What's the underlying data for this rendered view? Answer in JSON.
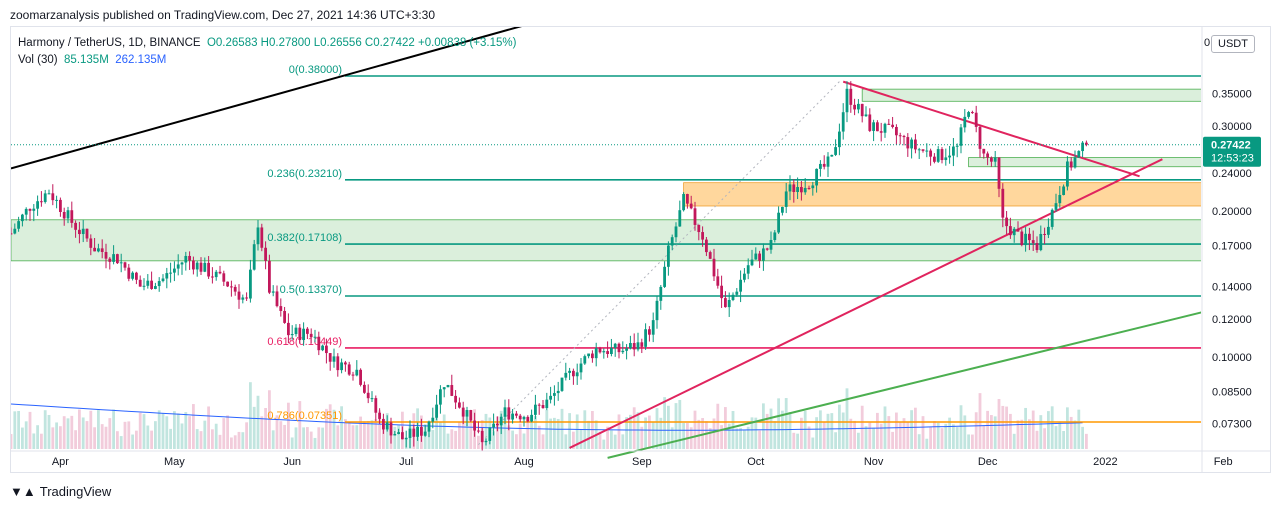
{
  "publisher_line": "zoomarzanalysis published on TradingView.com, Dec 27, 2021 14:36 UTC+3:30",
  "legend": {
    "symbol": "Harmony / TetherUS, 1D, BINANCE",
    "ohlc": "O0.26583 H0.27800 L0.26556 C0.27422 +0.00838 (+3.15%)",
    "vol_label": "Vol (30)",
    "vol_value": "85.135M",
    "vol_ma": "262.135M"
  },
  "currency": "USDT",
  "currency_zero": "0",
  "footer": "TradingView",
  "colors": {
    "up": "#089981",
    "down": "#c2185b",
    "fib": "#089981",
    "fib618": "#e91e63",
    "fib786": "#ff9800",
    "red_line": "#e0245e",
    "green_line": "#4caf50",
    "black_line": "#000000",
    "volume_ma": "#2962ff"
  },
  "chart_data": {
    "type": "candlestick",
    "symbol": "Harmony / TetherUS",
    "interval": "1D",
    "exchange": "BINANCE",
    "y_scale": "log",
    "ylim": [
      0.066,
      0.42
    ],
    "y_ticks": [
      "0.35000",
      "0.30000",
      "0.24000",
      "0.20000",
      "0.17000",
      "0.14000",
      "0.12000",
      "0.10000",
      "0.08500",
      "0.07300"
    ],
    "y_tick_values": [
      0.35,
      0.3,
      0.24,
      0.2,
      0.17,
      0.14,
      0.12,
      0.1,
      0.085,
      0.073
    ],
    "x_ticks": [
      "Apr",
      "May",
      "Jun",
      "Jul",
      "Aug",
      "Sep",
      "Oct",
      "Nov",
      "Dec",
      "2022",
      "Feb"
    ],
    "x_tick_dates": [
      "2021-04-01",
      "2021-05-01",
      "2021-06-01",
      "2021-07-01",
      "2021-08-01",
      "2021-09-01",
      "2021-10-01",
      "2021-11-01",
      "2021-12-01",
      "2022-01-01",
      "2022-02-01"
    ],
    "x_range": [
      "2021-03-19",
      "2022-02-10"
    ],
    "last_price": "0.27422",
    "countdown": "12:53:23",
    "last_price_value": 0.27422,
    "fib_levels": [
      {
        "label": "0(0.38000)",
        "value": 0.38,
        "color": "#089981"
      },
      {
        "label": "0.236(0.23210)",
        "value": 0.2321,
        "color": "#089981"
      },
      {
        "label": "0.382(0.17108)",
        "value": 0.17108,
        "color": "#089981"
      },
      {
        "label": "0.5(0.13370)",
        "value": 0.1337,
        "color": "#089981"
      },
      {
        "label": "0.618(0.10449)",
        "value": 0.10449,
        "color": "#e91e63"
      },
      {
        "label": "0.786(0.07351)",
        "value": 0.07351,
        "color": "#ff9800"
      }
    ],
    "zones": [
      {
        "from": "2021-03-19",
        "to": "2022-01-31",
        "low": 0.158,
        "high": 0.192,
        "color": "green"
      },
      {
        "from": "2021-09-12",
        "to": "2022-01-31",
        "low": 0.205,
        "high": 0.229,
        "color": "orange"
      },
      {
        "from": "2021-10-29",
        "to": "2022-01-31",
        "low": 0.337,
        "high": 0.357,
        "color": "green"
      },
      {
        "from": "2021-11-26",
        "to": "2022-01-31",
        "low": 0.247,
        "high": 0.258,
        "color": "green"
      }
    ],
    "trendlines": [
      {
        "name": "black",
        "from": [
          "2021-03-19",
          0.245
        ],
        "to": [
          "2021-10-02",
          0.66
        ]
      },
      {
        "name": "red-down",
        "from": [
          "2021-10-24",
          0.37
        ],
        "to": [
          "2022-01-10",
          0.236
        ]
      },
      {
        "name": "red-up",
        "from": [
          "2021-08-13",
          0.065
        ],
        "to": [
          "2022-01-16",
          0.256
        ]
      },
      {
        "name": "green",
        "from": [
          "2021-08-23",
          0.062
        ],
        "to": [
          "2022-02-10",
          0.132
        ]
      },
      {
        "name": "dotted",
        "from": [
          "2021-07-20",
          0.066
        ],
        "to": [
          "2021-10-23",
          0.37
        ]
      }
    ],
    "price_path": [
      [
        "2021-03-19",
        0.18
      ],
      [
        "2021-03-24",
        0.205
      ],
      [
        "2021-03-29",
        0.22
      ],
      [
        "2021-04-04",
        0.19
      ],
      [
        "2021-04-10",
        0.168
      ],
      [
        "2021-04-16",
        0.16
      ],
      [
        "2021-04-22",
        0.14
      ],
      [
        "2021-04-28",
        0.145
      ],
      [
        "2021-05-04",
        0.16
      ],
      [
        "2021-05-10",
        0.15
      ],
      [
        "2021-05-16",
        0.14
      ],
      [
        "2021-05-20",
        0.13
      ],
      [
        "2021-05-23",
        0.19
      ],
      [
        "2021-05-26",
        0.138
      ],
      [
        "2021-05-31",
        0.112
      ],
      [
        "2021-06-06",
        0.112
      ],
      [
        "2021-06-12",
        0.098
      ],
      [
        "2021-06-18",
        0.094
      ],
      [
        "2021-06-24",
        0.074
      ],
      [
        "2021-06-30",
        0.068
      ],
      [
        "2021-07-06",
        0.071
      ],
      [
        "2021-07-11",
        0.089
      ],
      [
        "2021-07-16",
        0.078
      ],
      [
        "2021-07-21",
        0.066
      ],
      [
        "2021-07-27",
        0.077
      ],
      [
        "2021-08-02",
        0.076
      ],
      [
        "2021-08-08",
        0.082
      ],
      [
        "2021-08-14",
        0.094
      ],
      [
        "2021-08-20",
        0.104
      ],
      [
        "2021-08-26",
        0.103
      ],
      [
        "2021-08-31",
        0.106
      ],
      [
        "2021-09-04",
        0.117
      ],
      [
        "2021-09-08",
        0.165
      ],
      [
        "2021-09-12",
        0.21
      ],
      [
        "2021-09-17",
        0.178
      ],
      [
        "2021-09-23",
        0.125
      ],
      [
        "2021-09-29",
        0.155
      ],
      [
        "2021-10-05",
        0.17
      ],
      [
        "2021-10-09",
        0.22
      ],
      [
        "2021-10-15",
        0.23
      ],
      [
        "2021-10-21",
        0.255
      ],
      [
        "2021-10-25",
        0.35
      ],
      [
        "2021-10-31",
        0.3
      ],
      [
        "2021-11-06",
        0.29
      ],
      [
        "2021-11-12",
        0.27
      ],
      [
        "2021-11-18",
        0.26
      ],
      [
        "2021-11-23",
        0.27
      ],
      [
        "2021-11-26",
        0.33
      ],
      [
        "2021-11-30",
        0.26
      ],
      [
        "2021-12-03",
        0.25
      ],
      [
        "2021-12-05",
        0.19
      ],
      [
        "2021-12-10",
        0.175
      ],
      [
        "2021-12-14",
        0.17
      ],
      [
        "2021-12-18",
        0.2
      ],
      [
        "2021-12-22",
        0.245
      ],
      [
        "2021-12-27",
        0.27422
      ]
    ]
  }
}
